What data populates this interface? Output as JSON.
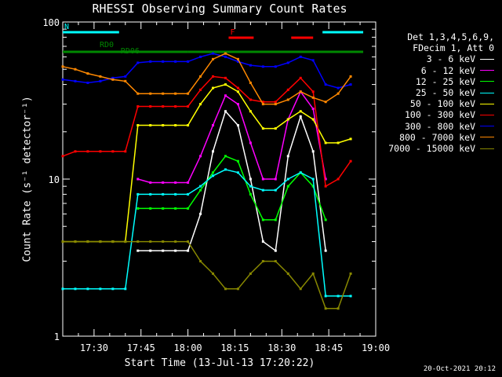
{
  "chart_data": {
    "type": "line",
    "title": "RHESSI Observing Summary Count Rates",
    "xlabel": "Start Time (13-Jul-13 17:20:22)",
    "ylabel": "Count Rate (s⁻¹ detector⁻¹)",
    "timestamp": "20-Oct-2021 20:12",
    "y_scale": "log",
    "ylim": [
      1,
      100
    ],
    "xlim": [
      "17:20",
      "19:00"
    ],
    "x_ticks": [
      "17:30",
      "17:45",
      "18:00",
      "18:15",
      "18:30",
      "18:45",
      "19:00"
    ],
    "y_ticks": [
      "1",
      "10",
      "100"
    ],
    "legend_header": [
      "Det 1,3,4,5,6,9,",
      "FDecim 1, Att 0"
    ],
    "legend_position": "right",
    "x": [
      "17:20",
      "17:24",
      "17:28",
      "17:32",
      "17:36",
      "17:40",
      "17:44",
      "17:48",
      "17:52",
      "17:56",
      "18:00",
      "18:04",
      "18:08",
      "18:12",
      "18:16",
      "18:20",
      "18:24",
      "18:28",
      "18:32",
      "18:36",
      "18:40",
      "18:44",
      "18:48",
      "18:52"
    ],
    "series": [
      {
        "name": "3 - 6 keV",
        "color": "#ffffff",
        "values": [
          null,
          null,
          null,
          null,
          null,
          null,
          3.5,
          3.5,
          3.5,
          3.5,
          3.5,
          6,
          15,
          27,
          22,
          10,
          4,
          3.5,
          14,
          25,
          15,
          3.5,
          null,
          null
        ]
      },
      {
        "name": "6 - 12 keV",
        "color": "#ff00ff",
        "values": [
          null,
          null,
          null,
          null,
          null,
          null,
          10,
          9.5,
          9.5,
          9.5,
          9.5,
          14,
          22,
          34,
          30,
          17,
          10,
          10,
          24,
          36,
          28,
          10,
          null,
          null
        ]
      },
      {
        "name": "12 - 25 keV",
        "color": "#00ff00",
        "values": [
          null,
          null,
          null,
          null,
          null,
          null,
          6.5,
          6.5,
          6.5,
          6.5,
          6.5,
          8.5,
          11,
          14,
          13,
          8,
          5.5,
          5.5,
          9,
          11,
          9,
          5.5,
          null,
          null
        ]
      },
      {
        "name": "25 - 50 keV",
        "color": "#00ffff",
        "values": [
          2,
          2,
          2,
          2,
          2,
          2,
          8,
          8,
          8,
          8,
          8,
          9,
          10.5,
          11.5,
          11,
          9,
          8.5,
          8.5,
          10,
          11,
          10,
          1.8,
          1.8,
          1.8
        ]
      },
      {
        "name": "50 - 100 keV",
        "color": "#ffff00",
        "values": [
          4,
          4,
          4,
          4,
          4,
          4,
          22,
          22,
          22,
          22,
          22,
          30,
          38,
          40,
          36,
          27,
          21,
          21,
          24,
          27,
          24,
          17,
          17,
          18
        ]
      },
      {
        "name": "100 - 300 keV",
        "color": "#ff0000",
        "values": [
          14,
          15,
          15,
          15,
          15,
          15,
          29,
          29,
          29,
          29,
          29,
          37,
          45,
          44,
          38,
          32,
          31,
          31,
          37,
          44,
          36,
          9,
          10,
          13
        ]
      },
      {
        "name": "300 - 800 keV",
        "color": "#0000ff",
        "values": [
          43,
          42,
          41,
          42,
          44,
          45,
          55,
          56,
          56,
          56,
          56,
          60,
          63,
          60,
          56,
          53,
          52,
          52,
          55,
          60,
          57,
          40,
          38,
          40
        ]
      },
      {
        "name": "800 - 7000 keV",
        "color": "#ff8800",
        "values": [
          52,
          50,
          47,
          45,
          43,
          42,
          35,
          35,
          35,
          35,
          35,
          45,
          58,
          63,
          58,
          41,
          30,
          30,
          32,
          36,
          33,
          31,
          35,
          45
        ]
      },
      {
        "name": "7000 - 15000 keV",
        "color": "#888800",
        "values": [
          4,
          4,
          4,
          4,
          4,
          4,
          4,
          4,
          4,
          4,
          4,
          3,
          2.5,
          2,
          2,
          2.5,
          3,
          3,
          2.5,
          2,
          2.5,
          1.5,
          1.5,
          2.5
        ]
      }
    ],
    "attenuator_bars": [
      {
        "label": "RD0",
        "color": "#008800",
        "start": "17:20",
        "end": "18:00"
      },
      {
        "label": "RD06",
        "color": "#008800",
        "start": "17:38",
        "end": "18:00"
      },
      {
        "label": "",
        "color": "#008800",
        "start": "18:00",
        "end": "18:56"
      }
    ],
    "flare_flags": [
      {
        "label": "F",
        "color": "#ff0000",
        "start": "18:13",
        "end": "18:21"
      },
      {
        "label": "",
        "color": "#ff0000",
        "start": "18:33",
        "end": "18:40"
      }
    ],
    "night_flags": [
      {
        "label": "N",
        "color": "#00ffff",
        "start": "17:20",
        "end": "17:38"
      },
      {
        "label": "",
        "color": "#00ffff",
        "start": "18:43",
        "end": "18:56"
      }
    ]
  },
  "axis": "#ffffff"
}
